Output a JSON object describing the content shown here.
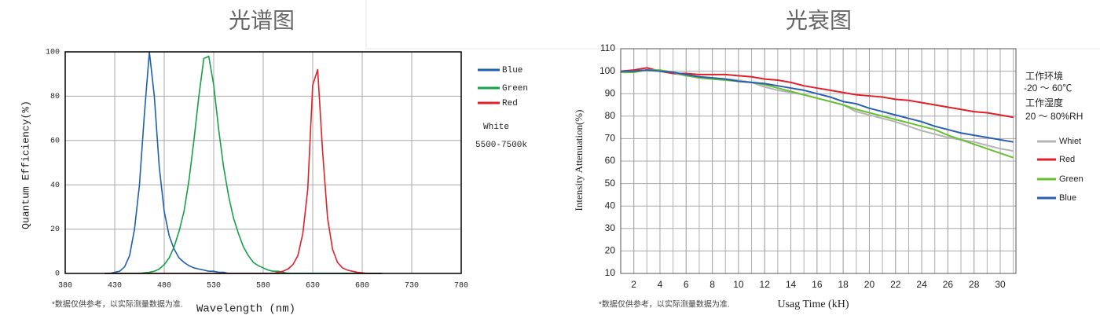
{
  "chart_data": [
    {
      "type": "line",
      "title": "光谱图",
      "x_label": "Wavelength (nm)",
      "y_label": "Quantum Efficiency(%)",
      "footnote": "*数据仅供参考，以实际测量数据为准.",
      "annotations": [
        "White",
        "5500-7500k"
      ],
      "xlim": [
        380,
        780
      ],
      "xticks": [
        380,
        430,
        480,
        530,
        580,
        630,
        680,
        730,
        780
      ],
      "ylim": [
        0,
        100
      ],
      "yticks": [
        0,
        20,
        40,
        60,
        80,
        100
      ],
      "grid": true,
      "legend": "right",
      "x": [
        420,
        425,
        430,
        435,
        440,
        445,
        450,
        455,
        460,
        465,
        470,
        475,
        480,
        485,
        490,
        495,
        500,
        505,
        510,
        515,
        520,
        525,
        530,
        535,
        540,
        545,
        550,
        555,
        560,
        565,
        570,
        575,
        580,
        585,
        590,
        595,
        600,
        605,
        610,
        615,
        620,
        625,
        630,
        635,
        640,
        645,
        650,
        655,
        660,
        665,
        670,
        675,
        680,
        685,
        690,
        695,
        700
      ],
      "series": [
        {
          "name": "Blue",
          "color": "#1f5fb0",
          "values": [
            0,
            0,
            0.5,
            1,
            3,
            8,
            20,
            40,
            72,
            100,
            80,
            48,
            28,
            17,
            11,
            7,
            5,
            3.5,
            2.5,
            2,
            1.5,
            1,
            1,
            0.5,
            0.5,
            0,
            0,
            0,
            0,
            0,
            0,
            0,
            0,
            0,
            0,
            0,
            0,
            0,
            0,
            0,
            0,
            0,
            0,
            0,
            0,
            0,
            0,
            0,
            0,
            0,
            0,
            0,
            0,
            0,
            0,
            0,
            0
          ]
        },
        {
          "name": "Green",
          "color": "#17a045",
          "values": [
            0,
            0,
            0,
            0,
            0,
            0,
            0,
            0,
            0.3,
            0.5,
            1,
            2,
            4,
            7,
            12,
            19,
            28,
            42,
            60,
            80,
            97,
            98,
            85,
            65,
            48,
            35,
            25,
            18,
            12,
            8,
            5,
            3.5,
            2.5,
            1.5,
            1,
            1,
            0.5,
            0,
            0,
            0,
            0,
            0,
            0,
            0,
            0,
            0,
            0,
            0,
            0,
            0,
            0,
            0,
            0,
            0,
            0,
            0,
            0
          ]
        },
        {
          "name": "Red",
          "color": "#e0202a",
          "values": [
            0,
            0,
            0,
            0,
            0,
            0,
            0,
            0,
            0,
            0,
            0,
            0,
            0,
            0,
            0,
            0,
            0,
            0,
            0,
            0,
            0,
            0,
            0,
            0,
            0,
            0,
            0,
            0,
            0,
            0,
            0,
            0,
            0,
            0,
            0,
            0.5,
            1,
            2,
            4,
            8,
            18,
            38,
            85,
            92,
            55,
            25,
            11,
            5,
            2.5,
            1.5,
            1,
            0.5,
            0.3,
            0,
            0,
            0,
            0
          ]
        }
      ]
    },
    {
      "type": "line",
      "title": "光衰图",
      "x_label": "Usag Time (kH)",
      "y_label": "Intensity Attenuation(%)",
      "footnote": "*数据仅供参考，以实际测量数据为准.",
      "annotations": [
        "工作环境",
        "-20 ～ 60℃",
        "工作湿度",
        "20 ～ 80%RH"
      ],
      "xlim": [
        1,
        31.2
      ],
      "xticks": [
        2,
        4,
        6,
        8,
        10,
        12,
        14,
        16,
        18,
        20,
        22,
        24,
        26,
        28,
        30
      ],
      "xgrid_step": 1,
      "ylim": [
        10,
        110
      ],
      "yticks": [
        10,
        20,
        30,
        40,
        50,
        60,
        70,
        80,
        90,
        100,
        110
      ],
      "grid": true,
      "legend": "right",
      "x": [
        1,
        2,
        3,
        4,
        5,
        6,
        7,
        8,
        9,
        10,
        11,
        12,
        13,
        14,
        15,
        16,
        17,
        18,
        19,
        20,
        21,
        22,
        23,
        24,
        25,
        26,
        27,
        28,
        29,
        30,
        31
      ],
      "series": [
        {
          "name": "Whiet",
          "color": "#b4b4b4",
          "values": [
            100,
            100,
            100.5,
            100,
            99,
            98,
            97.5,
            97,
            96.5,
            96,
            95,
            93,
            91.5,
            90.5,
            89.5,
            88,
            86.5,
            85,
            82,
            80.5,
            79,
            77.5,
            75.5,
            73.5,
            72,
            70.5,
            69.5,
            68.5,
            67,
            65.5,
            64.5
          ]
        },
        {
          "name": "Red",
          "color": "#e0202a",
          "values": [
            100,
            100.5,
            101.5,
            100,
            99,
            99,
            98.5,
            98.5,
            98.5,
            98,
            97.5,
            96.5,
            96,
            95,
            93.5,
            92.5,
            91.5,
            90.5,
            89.5,
            89,
            88.5,
            87.5,
            87,
            86,
            85,
            84,
            83,
            82,
            81.5,
            80.5,
            79.5
          ]
        },
        {
          "name": "Green",
          "color": "#66c030",
          "values": [
            99.5,
            99.5,
            100.5,
            100.5,
            99.5,
            98,
            97,
            96.5,
            96,
            95.5,
            95,
            94,
            92.5,
            91,
            89.5,
            88,
            86.5,
            85,
            83,
            81.5,
            80,
            78.5,
            77,
            75.5,
            74,
            71.5,
            69.5,
            67.5,
            65.5,
            63.5,
            61.5
          ]
        },
        {
          "name": "Blue",
          "color": "#2a5fb0",
          "values": [
            100,
            100,
            100.5,
            100,
            99.5,
            98.5,
            97.5,
            97,
            96.5,
            95.5,
            95,
            94.5,
            93.5,
            92.5,
            91.5,
            90,
            88.5,
            86.5,
            85.5,
            83.5,
            82,
            80.5,
            79,
            77.5,
            75.5,
            74,
            72.5,
            71.5,
            70.5,
            69.5,
            68.5
          ]
        }
      ]
    }
  ]
}
